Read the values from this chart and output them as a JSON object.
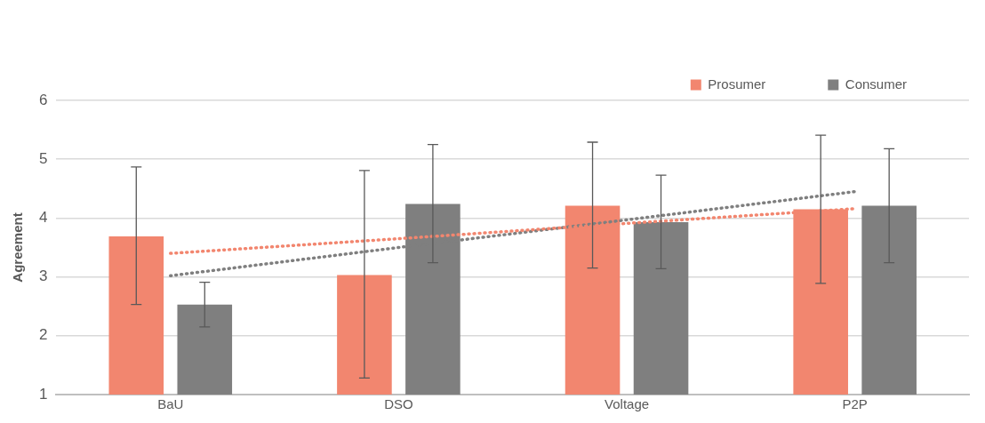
{
  "chart_data": {
    "type": "bar",
    "ylabel": "Agreement",
    "categories": [
      "BaU",
      "DSO",
      "Voltage",
      "P2P"
    ],
    "series": [
      {
        "name": "Prosumer",
        "color": "#f2866f",
        "values": [
          3.69,
          3.03,
          4.21,
          4.15
        ],
        "errors": [
          [
            2.53,
            4.87
          ],
          [
            1.28,
            4.81
          ],
          [
            3.15,
            5.29
          ],
          [
            2.89,
            5.41
          ]
        ]
      },
      {
        "name": "Consumer",
        "color": "#7f7f7f",
        "values": [
          2.53,
          4.24,
          3.93,
          4.21
        ],
        "errors": [
          [
            2.15,
            2.91
          ],
          [
            3.24,
            5.25
          ],
          [
            3.14,
            4.73
          ],
          [
            3.24,
            5.18
          ]
        ]
      },
      {
        "type": "line",
        "color": "#f2866f",
        "line_style": "dotted",
        "values": [
          3.4,
          3.65,
          3.91,
          4.16
        ]
      },
      {
        "type": "line",
        "color": "#7f7f7f",
        "line_style": "dotted",
        "values": [
          3.02,
          3.5,
          3.97,
          4.45
        ]
      }
    ],
    "ylim": [
      1,
      6
    ],
    "yticks": [
      1,
      2,
      3,
      4,
      5,
      6
    ],
    "grid": "y",
    "legend": "top"
  }
}
